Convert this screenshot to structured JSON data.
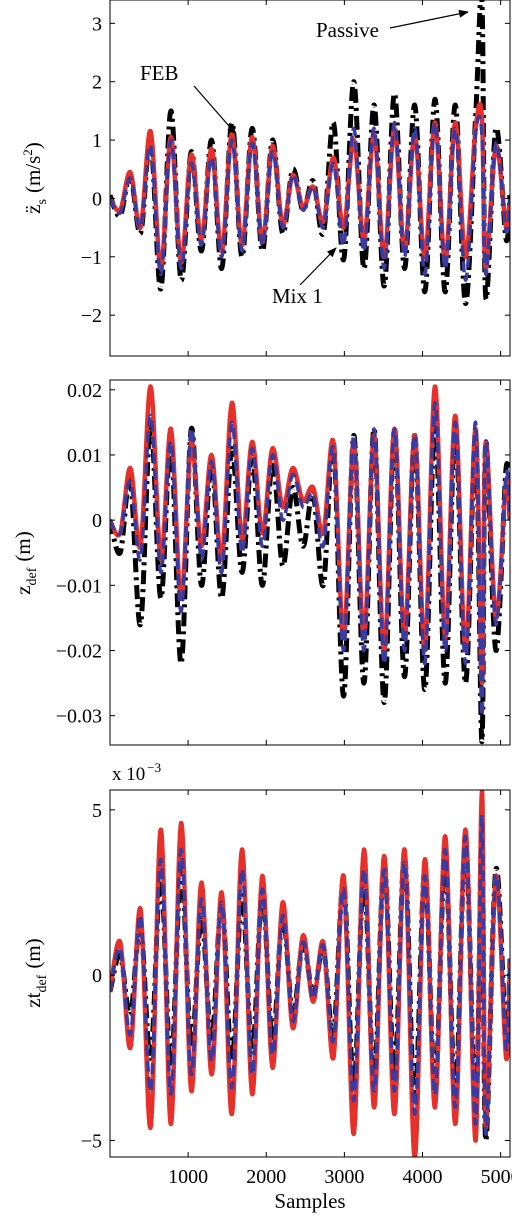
{
  "chart_data": [
    {
      "type": "line",
      "ylabel_main": "z̈",
      "ylabel_sub": "s",
      "ylabel_unit": "(m/s",
      "ylabel_unit_sup": "2",
      "ylabel_unit_close": ")",
      "ylim": [
        -2.7,
        3.4
      ],
      "xlim": [
        0,
        5120
      ],
      "yticks": [
        -2,
        -1,
        0,
        1,
        2,
        3
      ],
      "ytick_labels": [
        "−2",
        "−1",
        "0",
        "1",
        "2",
        "3"
      ],
      "xticks": [
        1000,
        2000,
        3000,
        4000,
        5000
      ],
      "annotations": [
        {
          "text": "Passive",
          "series": "Passive",
          "x": 4750,
          "y": 3.35
        },
        {
          "text": "FEB",
          "series": "FEB",
          "x": 1640,
          "y": 1.1
        },
        {
          "text": "Mix 1",
          "series": "Mix 1",
          "x": 3250,
          "y": -0.8
        }
      ],
      "series": [
        {
          "name": "Passive",
          "color": "#000000",
          "style": "dashdot",
          "x": [
            0,
            130,
            260,
            390,
            520,
            650,
            780,
            910,
            1040,
            1170,
            1300,
            1430,
            1560,
            1690,
            1820,
            1950,
            2080,
            2210,
            2340,
            2470,
            2600,
            2730,
            2860,
            2990,
            3120,
            3250,
            3380,
            3510,
            3640,
            3770,
            3900,
            4030,
            4160,
            4290,
            4420,
            4550,
            4680,
            4760,
            4810,
            4940,
            5070,
            5120
          ],
          "y": [
            0.05,
            -0.3,
            0.4,
            -0.6,
            1.0,
            -1.55,
            1.5,
            -1.4,
            0.8,
            -0.9,
            1.0,
            -1.2,
            1.3,
            -1.0,
            1.2,
            -0.9,
            1.0,
            -0.6,
            0.5,
            -0.2,
            0.3,
            -0.6,
            1.3,
            -1.05,
            2.0,
            -1.2,
            1.6,
            -1.5,
            1.8,
            -1.2,
            1.6,
            -1.6,
            1.7,
            -1.6,
            1.6,
            -1.8,
            1.4,
            3.4,
            -1.7,
            1.2,
            -0.7,
            0.1
          ]
        },
        {
          "name": "FEB",
          "color": "#e8302a",
          "style": "solid",
          "x": [
            0,
            130,
            260,
            390,
            520,
            650,
            780,
            910,
            1040,
            1170,
            1300,
            1430,
            1560,
            1690,
            1820,
            1950,
            2080,
            2210,
            2340,
            2470,
            2600,
            2730,
            2860,
            2990,
            3120,
            3250,
            3380,
            3510,
            3640,
            3770,
            3900,
            4030,
            4160,
            4290,
            4420,
            4550,
            4680,
            4760,
            4810,
            4940,
            5070,
            5120
          ],
          "y": [
            0.0,
            -0.2,
            0.45,
            -0.5,
            1.15,
            -1.2,
            1.05,
            -1.1,
            0.75,
            -0.7,
            0.85,
            -0.9,
            1.1,
            -0.8,
            1.05,
            -0.75,
            0.9,
            -0.45,
            0.4,
            -0.15,
            0.2,
            -0.4,
            0.7,
            -0.5,
            1.0,
            -0.7,
            1.1,
            -1.0,
            1.2,
            -0.9,
            1.1,
            -1.0,
            1.3,
            -1.1,
            1.3,
            -1.0,
            1.2,
            1.4,
            -1.2,
            0.9,
            -0.5,
            0.0
          ]
        },
        {
          "name": "Mix 1",
          "color": "#3b3aa0",
          "style": "dashed",
          "x": [
            0,
            130,
            260,
            390,
            520,
            650,
            780,
            910,
            1040,
            1170,
            1300,
            1430,
            1560,
            1690,
            1820,
            1950,
            2080,
            2210,
            2340,
            2470,
            2600,
            2730,
            2860,
            2990,
            3120,
            3250,
            3380,
            3510,
            3640,
            3770,
            3900,
            4030,
            4160,
            4290,
            4420,
            4550,
            4680,
            4760,
            4810,
            4940,
            5070,
            5120
          ],
          "y": [
            0.0,
            -0.25,
            0.35,
            -0.5,
            0.9,
            -1.3,
            1.0,
            -1.2,
            0.6,
            -0.8,
            0.7,
            -1.0,
            1.0,
            -0.9,
            0.95,
            -0.8,
            0.8,
            -0.5,
            0.4,
            -0.2,
            0.2,
            -0.5,
            0.6,
            -0.8,
            1.2,
            -0.9,
            1.2,
            -1.2,
            1.3,
            -1.0,
            1.2,
            -1.3,
            1.3,
            -1.2,
            1.2,
            -1.4,
            1.1,
            1.1,
            -1.3,
            0.95,
            -0.55,
            0.0
          ]
        }
      ]
    },
    {
      "type": "line",
      "ylabel_main": "z",
      "ylabel_sub": "def",
      "ylabel_unit": "(m)",
      "ylim": [
        -0.0345,
        0.0215
      ],
      "xlim": [
        0,
        5120
      ],
      "yticks": [
        -0.03,
        -0.02,
        -0.01,
        0,
        0.01,
        0.02
      ],
      "ytick_labels": [
        "−0.03",
        "−0.02",
        "−0.01",
        "0",
        "0.01",
        "0.02"
      ],
      "xticks": [
        1000,
        2000,
        3000,
        4000,
        5000
      ],
      "series": [
        {
          "name": "Passive",
          "color": "#000000",
          "style": "dashdot",
          "x": [
            0,
            130,
            260,
            390,
            520,
            650,
            780,
            910,
            1040,
            1170,
            1300,
            1430,
            1560,
            1690,
            1820,
            1950,
            2080,
            2210,
            2340,
            2470,
            2600,
            2730,
            2860,
            2990,
            3120,
            3250,
            3380,
            3510,
            3640,
            3770,
            3900,
            4030,
            4160,
            4290,
            4420,
            4550,
            4680,
            4760,
            4810,
            4940,
            5070,
            5120
          ],
          "y": [
            0.0,
            -0.005,
            0.006,
            -0.016,
            0.015,
            -0.012,
            0.012,
            -0.022,
            0.014,
            -0.01,
            0.009,
            -0.012,
            0.011,
            -0.008,
            0.01,
            -0.01,
            0.009,
            -0.007,
            0.005,
            -0.004,
            0.004,
            -0.01,
            0.012,
            -0.027,
            0.013,
            -0.025,
            0.014,
            -0.028,
            0.014,
            -0.024,
            0.013,
            -0.026,
            0.015,
            -0.025,
            0.014,
            -0.025,
            0.013,
            -0.034,
            0.012,
            -0.02,
            0.008,
            0.0
          ]
        },
        {
          "name": "FEB",
          "color": "#e8302a",
          "style": "solid",
          "x": [
            0,
            130,
            260,
            390,
            520,
            650,
            780,
            910,
            1040,
            1170,
            1300,
            1430,
            1560,
            1690,
            1820,
            1950,
            2080,
            2210,
            2340,
            2470,
            2600,
            2730,
            2860,
            2990,
            3120,
            3250,
            3380,
            3510,
            3640,
            3770,
            3900,
            4030,
            4160,
            4290,
            4420,
            4550,
            4680,
            4760,
            4810,
            4940,
            5070,
            5120
          ],
          "y": [
            0.0,
            -0.002,
            0.008,
            -0.004,
            0.0205,
            -0.006,
            0.014,
            -0.012,
            0.012,
            -0.004,
            0.01,
            -0.006,
            0.018,
            -0.003,
            0.012,
            -0.002,
            0.011,
            0.002,
            0.008,
            0.003,
            0.005,
            -0.002,
            0.012,
            -0.018,
            0.012,
            -0.018,
            0.013,
            -0.02,
            0.014,
            -0.018,
            0.013,
            -0.02,
            0.0205,
            -0.018,
            0.016,
            -0.02,
            0.014,
            -0.025,
            0.012,
            -0.015,
            0.006,
            0.0
          ]
        },
        {
          "name": "Mix 1",
          "color": "#3b3aa0",
          "style": "dashed",
          "x": [
            0,
            130,
            260,
            390,
            520,
            650,
            780,
            910,
            1040,
            1170,
            1300,
            1430,
            1560,
            1690,
            1820,
            1950,
            2080,
            2210,
            2340,
            2470,
            2600,
            2730,
            2860,
            2990,
            3120,
            3250,
            3380,
            3510,
            3640,
            3770,
            3900,
            4030,
            4160,
            4290,
            4420,
            4550,
            4680,
            4760,
            4810,
            4940,
            5070,
            5120
          ],
          "y": [
            0.0,
            -0.002,
            0.006,
            -0.006,
            0.016,
            -0.008,
            0.012,
            -0.014,
            0.014,
            -0.006,
            0.009,
            -0.008,
            0.015,
            -0.005,
            0.011,
            -0.004,
            0.01,
            0.0,
            0.007,
            0.002,
            0.004,
            -0.004,
            0.011,
            -0.02,
            0.013,
            -0.02,
            0.014,
            -0.022,
            0.014,
            -0.02,
            0.013,
            -0.022,
            0.018,
            -0.02,
            0.015,
            -0.022,
            0.015,
            -0.03,
            0.012,
            -0.016,
            0.007,
            0.0
          ]
        }
      ]
    },
    {
      "type": "line",
      "ylabel_main": "zt",
      "ylabel_sub": "def",
      "ylabel_unit": "(m)",
      "scale_label": "x 10",
      "scale_exp": "−3",
      "xlabel": "Samples",
      "ylim": [
        -5.5,
        5.6
      ],
      "xlim": [
        0,
        5120
      ],
      "yticks": [
        -5,
        0,
        5
      ],
      "ytick_labels": [
        "−5",
        "0",
        "5"
      ],
      "xticks": [
        1000,
        2000,
        3000,
        4000,
        5000
      ],
      "xtick_labels": [
        "1000",
        "2000",
        "3000",
        "4000",
        "5000"
      ],
      "series": [
        {
          "name": "Passive",
          "color": "#000000",
          "style": "dashdot",
          "x": [
            0,
            130,
            260,
            390,
            520,
            650,
            780,
            910,
            1040,
            1170,
            1300,
            1430,
            1560,
            1690,
            1820,
            1950,
            2080,
            2210,
            2340,
            2470,
            2600,
            2730,
            2860,
            2990,
            3120,
            3250,
            3380,
            3510,
            3640,
            3770,
            3900,
            4030,
            4160,
            4290,
            4420,
            4550,
            4680,
            4760,
            4810,
            4940,
            5070,
            5120
          ],
          "y": [
            -0.5,
            0.6,
            -1.2,
            1.5,
            -2.5,
            3.0,
            -2.8,
            3.2,
            -2.2,
            1.8,
            -2.0,
            2.2,
            -2.6,
            2.4,
            -2.3,
            2.5,
            -2.0,
            1.8,
            -1.2,
            1.0,
            -0.6,
            0.8,
            -1.8,
            2.8,
            -3.4,
            3.0,
            -3.2,
            3.4,
            -3.0,
            3.6,
            -3.8,
            3.2,
            -3.4,
            3.6,
            -3.6,
            4.0,
            -4.2,
            4.4,
            -5.0,
            3.2,
            -2.0,
            0.5
          ]
        },
        {
          "name": "FEB",
          "color": "#e8302a",
          "style": "solid",
          "x": [
            0,
            130,
            260,
            390,
            520,
            650,
            780,
            910,
            1040,
            1170,
            1300,
            1430,
            1560,
            1690,
            1820,
            1950,
            2080,
            2210,
            2340,
            2470,
            2600,
            2730,
            2860,
            2990,
            3120,
            3250,
            3380,
            3510,
            3640,
            3770,
            3900,
            4030,
            4160,
            4290,
            4420,
            4550,
            4680,
            4760,
            4810,
            4940,
            5070,
            5120
          ],
          "y": [
            -0.5,
            1.0,
            -2.2,
            2.0,
            -4.6,
            4.4,
            -4.5,
            4.6,
            -3.5,
            2.8,
            -3.0,
            2.5,
            -4.2,
            3.8,
            -3.6,
            3.0,
            -2.8,
            2.2,
            -1.6,
            1.2,
            -0.8,
            1.0,
            -2.5,
            3.0,
            -4.8,
            3.8,
            -4.0,
            3.6,
            -4.2,
            3.8,
            -5.5,
            3.5,
            -4.0,
            4.2,
            -4.5,
            4.4,
            -5.0,
            5.6,
            -4.6,
            3.0,
            -2.5,
            0.5
          ]
        },
        {
          "name": "Mix 1",
          "color": "#3b3aa0",
          "style": "dashed",
          "x": [
            0,
            130,
            260,
            390,
            520,
            650,
            780,
            910,
            1040,
            1170,
            1300,
            1430,
            1560,
            1690,
            1820,
            1950,
            2080,
            2210,
            2340,
            2470,
            2600,
            2730,
            2860,
            2990,
            3120,
            3250,
            3380,
            3510,
            3640,
            3770,
            3900,
            4030,
            4160,
            4290,
            4420,
            4550,
            4680,
            4760,
            4810,
            4940,
            5070,
            5120
          ],
          "y": [
            -0.5,
            0.8,
            -1.8,
            1.8,
            -3.5,
            3.5,
            -3.6,
            3.8,
            -3.0,
            2.3,
            -2.6,
            2.2,
            -3.4,
            3.2,
            -3.0,
            2.6,
            -2.4,
            1.8,
            -1.4,
            1.0,
            -0.7,
            0.9,
            -2.0,
            2.6,
            -3.8,
            3.2,
            -3.5,
            3.2,
            -3.5,
            3.4,
            -4.2,
            3.0,
            -3.6,
            3.8,
            -4.0,
            4.2,
            -4.5,
            4.8,
            -4.8,
            3.0,
            -2.2,
            0.5
          ]
        }
      ]
    }
  ]
}
